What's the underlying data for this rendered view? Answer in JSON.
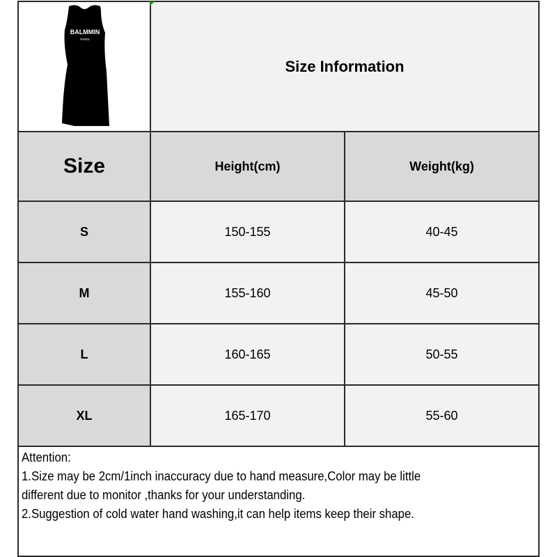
{
  "product_image": {
    "logo_text": "BALMMIN",
    "logo_subtext": "PARIS",
    "color": "#000000"
  },
  "title": "Size Information",
  "headers": {
    "size": "Size",
    "height": "Height(cm)",
    "weight": "Weight(kg)"
  },
  "rows": [
    {
      "size": "S",
      "height": "150-155",
      "weight": "40-45"
    },
    {
      "size": "M",
      "height": "155-160",
      "weight": "45-50"
    },
    {
      "size": "L",
      "height": "160-165",
      "weight": "50-55"
    },
    {
      "size": "XL",
      "height": "165-170",
      "weight": "55-60"
    }
  ],
  "notes": {
    "heading": "Attention:",
    "line1a": "1.Size may be 2cm/1inch inaccuracy due to hand measure,Color may be little",
    "line1b": "different due to monitor ,thanks for your understanding.",
    "line2": "2.Suggestion of cold water hand washing,it can help items keep their shape."
  },
  "colors": {
    "header_bg": "#d9d9d9",
    "cell_bg": "#f2f2f2",
    "border": "#2a2a2a"
  }
}
